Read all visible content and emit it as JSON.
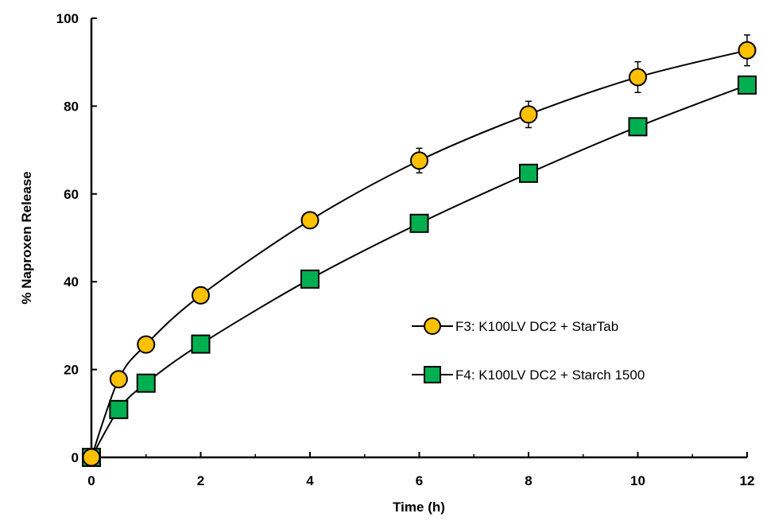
{
  "chart_data": {
    "type": "line",
    "title": "",
    "xlabel": "Time (h)",
    "ylabel": "% Naproxen Release",
    "xlim": [
      0,
      12
    ],
    "ylim": [
      0,
      100
    ],
    "xticks": [
      0,
      2,
      4,
      6,
      8,
      10,
      12
    ],
    "yticks": [
      0,
      20,
      40,
      60,
      80,
      100
    ],
    "grid": false,
    "legend_position": "right-center",
    "series": [
      {
        "name": "F3: K100LV DC2 + StarTab",
        "marker": "circle",
        "color": "#FFC000",
        "x": [
          0,
          0.5,
          1,
          2,
          4,
          6,
          8,
          10,
          12
        ],
        "y": [
          0,
          17.8,
          25.7,
          36.9,
          54.0,
          67.6,
          78.1,
          86.6,
          92.7
        ],
        "error": [
          0,
          0,
          0,
          0,
          1.8,
          2.8,
          3.0,
          3.5,
          3.5
        ]
      },
      {
        "name": "F4: K100LV DC2 + Starch 1500",
        "marker": "square",
        "color": "#00B050",
        "x": [
          0,
          0.5,
          1,
          2,
          4,
          6,
          8,
          10,
          12
        ],
        "y": [
          0,
          10.9,
          16.9,
          25.8,
          40.6,
          53.3,
          64.7,
          75.3,
          84.8
        ],
        "error": [
          0,
          0,
          0,
          0,
          0,
          0,
          0,
          0,
          0
        ]
      }
    ]
  }
}
